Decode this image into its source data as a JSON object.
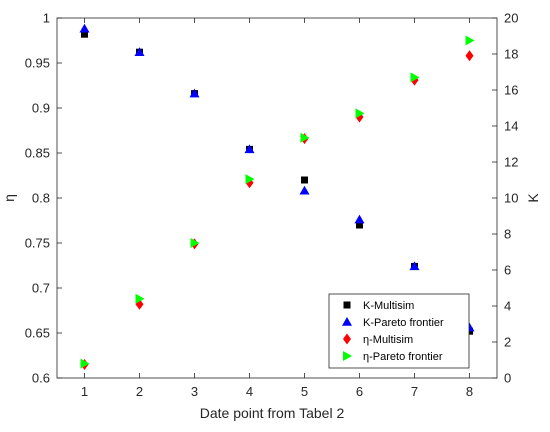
{
  "chart_data": {
    "type": "scatter",
    "title": "",
    "xlabel": "Date point from Tabel 2",
    "ylabel_left": "η",
    "ylabel_right": "K",
    "xlim": [
      0.5,
      8.5
    ],
    "ylim_left": [
      0.6,
      1.0
    ],
    "ylim_right": [
      0,
      20
    ],
    "xticks": [
      1,
      2,
      3,
      4,
      5,
      6,
      7,
      8
    ],
    "yticks_left": [
      0.6,
      0.65,
      0.7,
      0.75,
      0.8,
      0.85,
      0.9,
      0.95,
      1
    ],
    "yticks_left_labels": [
      "0.6",
      "0.65",
      "0.7",
      "0.75",
      "0.8",
      "0.85",
      "0.9",
      "0.95",
      "1"
    ],
    "yticks_right": [
      0,
      2,
      4,
      6,
      8,
      10,
      12,
      14,
      16,
      18,
      20
    ],
    "grid": false,
    "legend_position": "bottom-right",
    "series": [
      {
        "name": "K-Multisim",
        "axis": "right",
        "marker": "square",
        "color": "#000000",
        "x": [
          1,
          2,
          3,
          4,
          5,
          6,
          7,
          8
        ],
        "y": [
          19.1,
          18.1,
          15.8,
          12.7,
          11.0,
          8.5,
          6.2,
          2.6
        ]
      },
      {
        "name": "K-Pareto frontier",
        "axis": "right",
        "marker": "triangle-up",
        "color": "#0000ff",
        "x": [
          1,
          2,
          3,
          4,
          5,
          6,
          7,
          8
        ],
        "y": [
          19.4,
          18.1,
          15.8,
          12.7,
          10.4,
          8.8,
          6.2,
          2.8
        ]
      },
      {
        "name": "η-Multisim",
        "axis": "left",
        "marker": "diamond",
        "color": "#ff0000",
        "x": [
          1,
          2,
          3,
          4,
          5,
          6,
          7,
          8
        ],
        "y": [
          0.615,
          0.682,
          0.749,
          0.817,
          0.866,
          0.89,
          0.931,
          0.958
        ]
      },
      {
        "name": "η-Pareto frontier",
        "axis": "left",
        "marker": "triangle-right",
        "color": "#00ff00",
        "x": [
          1,
          2,
          3,
          4,
          5,
          6,
          7,
          8
        ],
        "y": [
          0.616,
          0.688,
          0.75,
          0.821,
          0.867,
          0.894,
          0.934,
          0.975
        ]
      }
    ]
  }
}
